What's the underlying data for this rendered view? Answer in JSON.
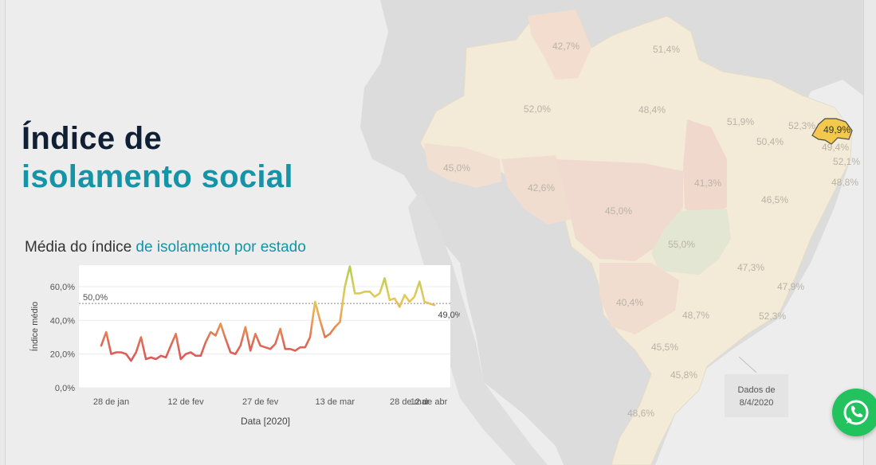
{
  "title": {
    "line1": "Índice de",
    "line2": "isolamento social"
  },
  "subtitle": {
    "prefix": "Média do índice ",
    "highlight": "de isolamento por estado"
  },
  "note": {
    "line1": "Dados de",
    "line2": "8/4/2020"
  },
  "colors": {
    "title_dark": "#0f2034",
    "accent": "#1593a7",
    "whatsapp": "#22c35e",
    "highlight_state": "#f2c94c"
  },
  "map": {
    "regions": [
      {
        "name": "region-ap",
        "label": "42,7%"
      },
      {
        "name": "region-rr-pa-north",
        "label": "51,4%"
      },
      {
        "name": "region-am",
        "label": "52,0%"
      },
      {
        "name": "region-pa",
        "label": "48,4%"
      },
      {
        "name": "region-ma",
        "label": "51,9%"
      },
      {
        "name": "region-ce",
        "label": "52,3%"
      },
      {
        "name": "region-rn",
        "label": "49,9%"
      },
      {
        "name": "region-pi",
        "label": "50,4%"
      },
      {
        "name": "region-pb",
        "label": "49,4%"
      },
      {
        "name": "region-pe",
        "label": "52,1%"
      },
      {
        "name": "region-al",
        "label": "48,8%"
      },
      {
        "name": "region-ac",
        "label": "45,0%"
      },
      {
        "name": "region-ro",
        "label": "42,6%"
      },
      {
        "name": "region-mt",
        "label": "45,0%"
      },
      {
        "name": "region-to",
        "label": "41,3%"
      },
      {
        "name": "region-ba",
        "label": "46,5%"
      },
      {
        "name": "region-go",
        "label": "55,0%"
      },
      {
        "name": "region-mg",
        "label": "47,3%"
      },
      {
        "name": "region-es",
        "label": "47,9%"
      },
      {
        "name": "region-ms",
        "label": "40,4%"
      },
      {
        "name": "region-sp",
        "label": "48,7%"
      },
      {
        "name": "region-rj",
        "label": "52,3%"
      },
      {
        "name": "region-pr",
        "label": "45,5%"
      },
      {
        "name": "region-sc",
        "label": "45,8%"
      },
      {
        "name": "region-rs",
        "label": "48,6%"
      }
    ],
    "highlighted_state": "region-rn"
  },
  "chart_data": {
    "type": "line",
    "xlabel": "Data [2020]",
    "ylabel": "Índice médio",
    "x_ticks": [
      "28 de jan",
      "12 de fev",
      "27 de fev",
      "13 de mar",
      "28 de mar",
      "12 de abr"
    ],
    "y_ticks": [
      "0,0%",
      "20,0%",
      "40,0%",
      "60,0%"
    ],
    "ylim": [
      0,
      68
    ],
    "reference_line": {
      "value": 50,
      "label": "50,0%"
    },
    "last_value_label": "49,0%",
    "grid": true,
    "x_start": "2020-01-26",
    "values": [
      25,
      33,
      20,
      21,
      21,
      20,
      16,
      21,
      30,
      17,
      18,
      17,
      19,
      18,
      25,
      32,
      17,
      20,
      21,
      19,
      19,
      27,
      33,
      31,
      38,
      29,
      21,
      20,
      25,
      36,
      22,
      32,
      25,
      24,
      23,
      26,
      35,
      23,
      23,
      22,
      24,
      24,
      30,
      51,
      40,
      30,
      32,
      36,
      39,
      60,
      72,
      56,
      56,
      57,
      57,
      54,
      56,
      65,
      52,
      53,
      48,
      55,
      51,
      54,
      63,
      51,
      50,
      49
    ]
  }
}
